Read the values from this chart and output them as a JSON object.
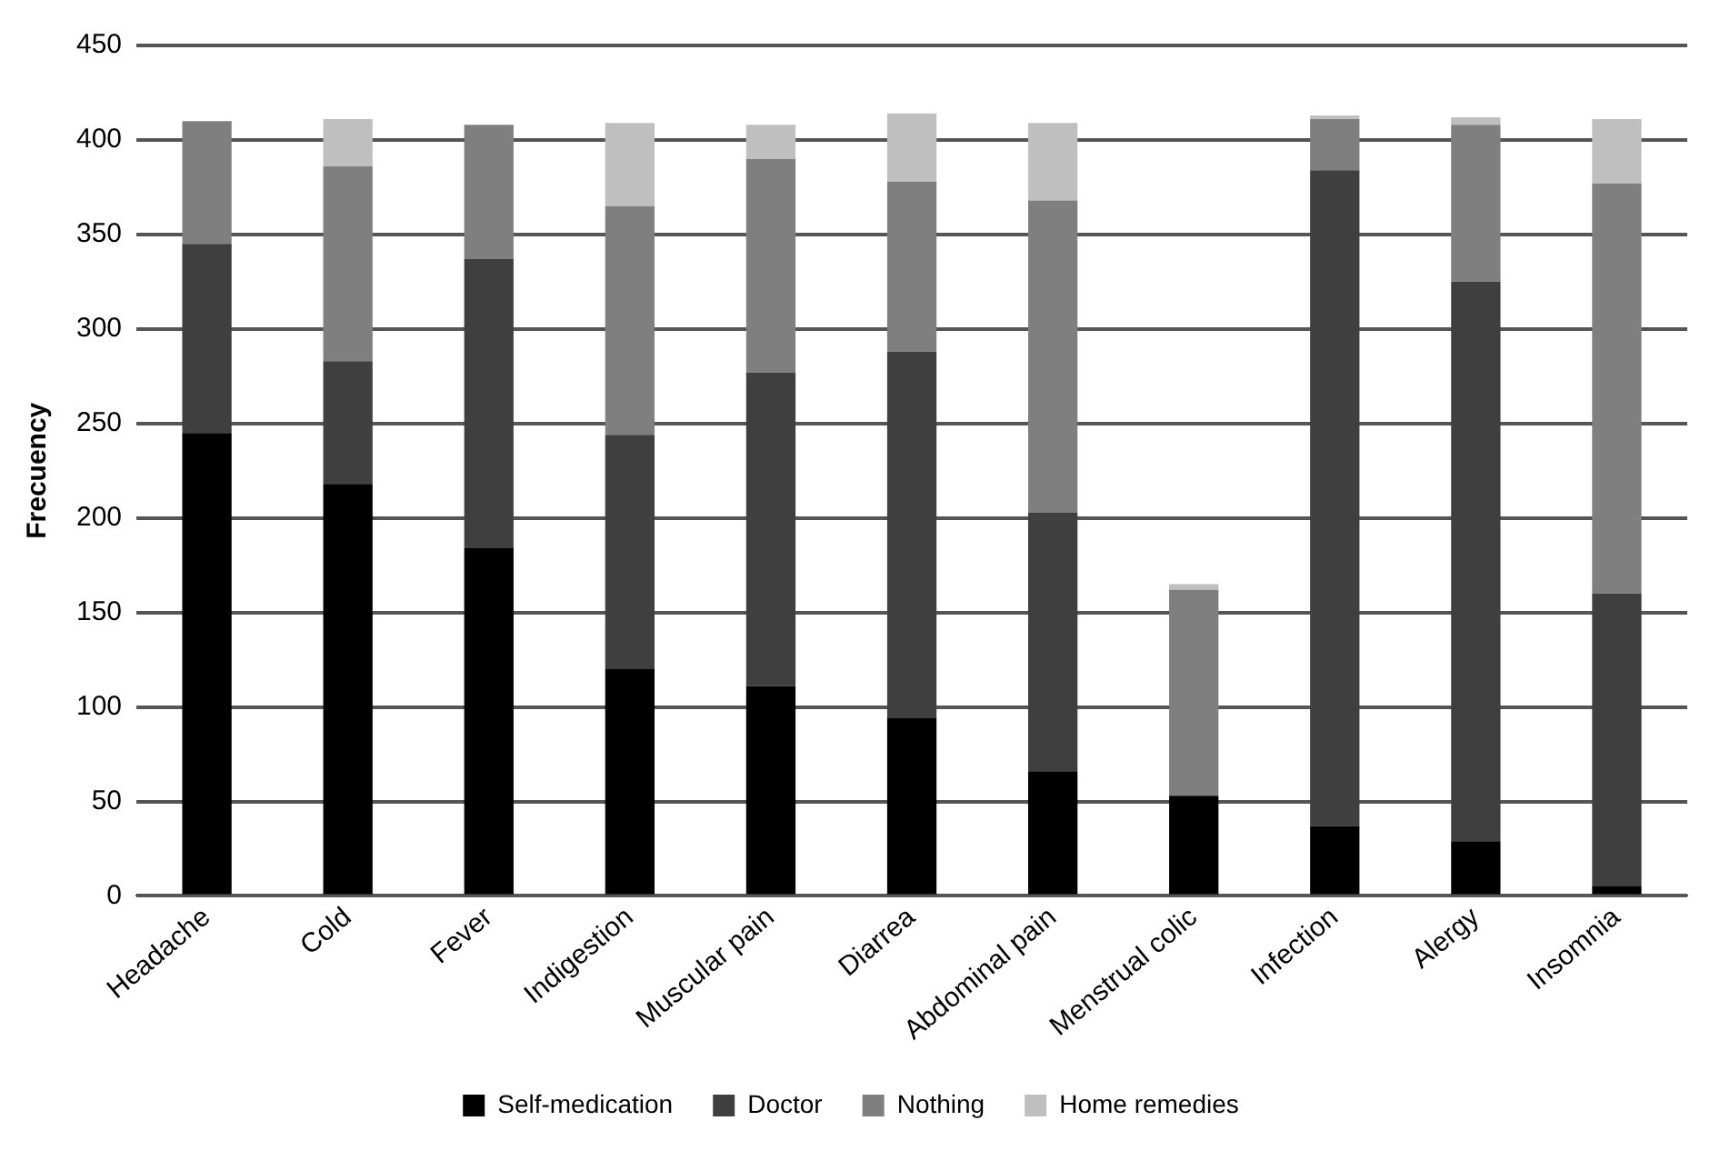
{
  "chart_data": {
    "type": "bar",
    "stacked": true,
    "ylabel": "Frecuency",
    "categories": [
      "Headache",
      "Cold",
      "Fever",
      "Indigestion",
      "Muscular pain",
      "Diarrea",
      "Abdominal pain",
      "Menstrual colic",
      "Infection",
      "Alergy",
      "Insomnia"
    ],
    "series": [
      {
        "name": "Self-medication",
        "color": "#000000",
        "values": [
          245,
          218,
          184,
          120,
          111,
          94,
          66,
          53,
          37,
          29,
          5
        ]
      },
      {
        "name": "Doctor",
        "color": "#3f3f3f",
        "values": [
          100,
          65,
          153,
          124,
          166,
          194,
          137,
          0,
          347,
          296,
          155
        ]
      },
      {
        "name": "Nothing",
        "color": "#7f7f7f",
        "values": [
          65,
          103,
          71,
          121,
          113,
          90,
          165,
          109,
          27,
          83,
          217
        ]
      },
      {
        "name": "Home remedies",
        "color": "#bfbfbf",
        "values": [
          0,
          25,
          0,
          44,
          18,
          36,
          41,
          3,
          2,
          4,
          34
        ]
      }
    ],
    "ylim": [
      0,
      450
    ],
    "yticks": [
      0,
      50,
      100,
      150,
      200,
      250,
      300,
      350,
      400,
      450
    ],
    "grid": "y",
    "legend": "bottom"
  }
}
